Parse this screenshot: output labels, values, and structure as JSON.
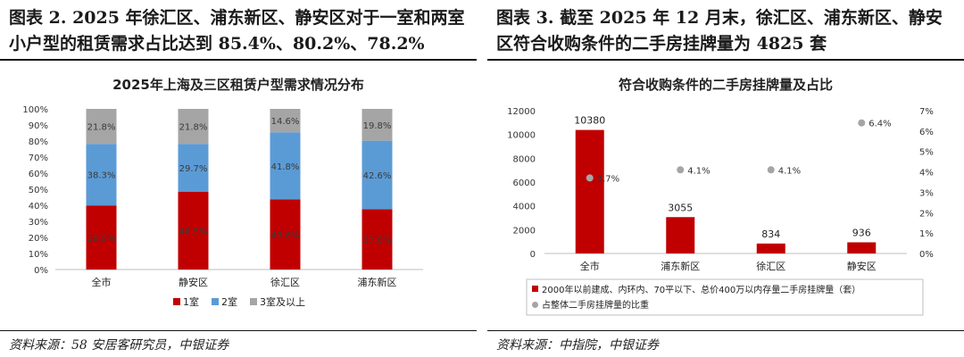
{
  "left": {
    "figure_title": "图表 2. 2025 年徐汇区、浦东新区、静安区对于一室和两室小户型的租赁需求占比达到 85.4%、80.2%、78.2%",
    "source": "资料来源：58 安居客研究员，中银证券"
  },
  "right": {
    "figure_title": "图表 3. 截至 2025 年 12 月末，徐汇区、浦东新区、静安区符合收购条件的二手房挂牌量为 4825 套",
    "source": "资料来源：中指院，中银证券"
  },
  "chart_data": [
    {
      "type": "bar",
      "stacked": true,
      "title": "2025年上海及三区租赁户型需求情况分布",
      "categories": [
        "全市",
        "静安区",
        "徐汇区",
        "浦东新区"
      ],
      "series": [
        {
          "name": "1室",
          "values": [
            39.9,
            48.5,
            43.6,
            37.6
          ],
          "labels": [
            "39.9%",
            "48.5%",
            "43.6%",
            "37.6%"
          ],
          "color": "#c00000"
        },
        {
          "name": "2室",
          "values": [
            38.3,
            29.7,
            41.8,
            42.6
          ],
          "labels": [
            "38.3%",
            "29.7%",
            "41.8%",
            "42.6%"
          ],
          "color": "#5b9bd5"
        },
        {
          "name": "3室及以上",
          "values": [
            21.8,
            21.8,
            14.6,
            19.8
          ],
          "labels": [
            "21.8%",
            "21.8%",
            "14.6%",
            "19.8%"
          ],
          "color": "#a5a5a5"
        }
      ],
      "yticks": [
        "0%",
        "10%",
        "20%",
        "30%",
        "40%",
        "50%",
        "60%",
        "70%",
        "80%",
        "90%",
        "100%"
      ],
      "ylim": [
        0,
        100
      ],
      "legend_position": "bottom"
    },
    {
      "type": "bar",
      "title": "符合收购条件的二手房挂牌量及占比",
      "categories": [
        "全市",
        "浦东新区",
        "徐汇区",
        "静安区"
      ],
      "bar_series": {
        "name": "2000年以前建成、内环内、70平以下、总价400万以内存量二手房挂牌量（套）",
        "values": [
          10380,
          3055,
          834,
          936
        ],
        "labels": [
          "10380",
          "3055",
          "834",
          "936"
        ],
        "color": "#c00000"
      },
      "scatter_series": {
        "name": "占整体二手房挂牌量的比重",
        "values": [
          3.7,
          4.1,
          4.1,
          6.4
        ],
        "labels": [
          "3.7%",
          "4.1%",
          "4.1%",
          "6.4%"
        ],
        "color": "#a5a5a5"
      },
      "y_left_ticks": [
        "0",
        "2000",
        "4000",
        "6000",
        "8000",
        "10000",
        "12000"
      ],
      "y_left_lim": [
        0,
        12000
      ],
      "y_right_ticks": [
        "0%",
        "1%",
        "2%",
        "3%",
        "4%",
        "5%",
        "6%",
        "7%"
      ],
      "y_right_lim": [
        0,
        7
      ],
      "legend_position": "bottom"
    }
  ]
}
